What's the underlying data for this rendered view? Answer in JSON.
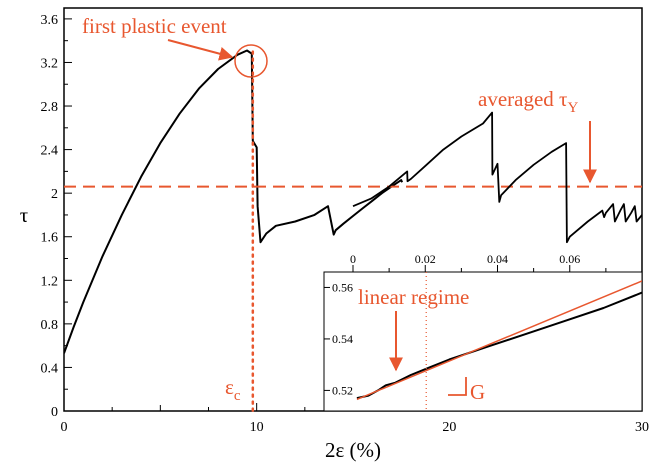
{
  "chart_data": [
    {
      "type": "line",
      "xlabel": "2ε (%)",
      "ylabel": "τ",
      "xlim": [
        0,
        30
      ],
      "ylim": [
        0,
        3.7
      ],
      "x_ticks": [
        0,
        10,
        20,
        30
      ],
      "y_ticks": [
        0,
        0.4,
        0.8,
        1.2,
        1.6,
        2,
        2.4,
        2.8,
        3.2,
        3.6
      ],
      "y_tick_labels": [
        "0",
        "0.4",
        "0.8",
        "1.2",
        "1.6",
        "2",
        "2.4",
        "2.8",
        "3.2",
        "3.6"
      ],
      "series": [
        {
          "color": "#000000",
          "x": [
            0,
            0.5,
            1,
            2,
            3,
            4,
            5,
            6,
            7,
            8,
            9,
            9.5,
            9.75,
            9.8,
            10,
            10.05,
            10.2,
            10.5,
            11,
            12,
            13,
            13.7,
            14.0,
            14.1,
            14.5,
            15,
            15.5,
            16,
            16.5,
            17,
            17.5,
            17.55
          ],
          "y": [
            0.53,
            0.77,
            1.0,
            1.42,
            1.8,
            2.15,
            2.46,
            2.73,
            2.96,
            3.14,
            3.27,
            3.31,
            3.28,
            2.48,
            2.42,
            1.88,
            1.55,
            1.63,
            1.7,
            1.74,
            1.8,
            1.88,
            1.62,
            1.66,
            1.72,
            1.79,
            1.86,
            1.93,
            2.0,
            2.06,
            2.12,
            2.1
          ]
        }
      ],
      "reference_lines": [
        {
          "orientation": "horizontal",
          "value": 2.06,
          "style": "dashed",
          "color": "#e8572f"
        },
        {
          "orientation": "vertical",
          "value": 9.8,
          "style": "dotted",
          "color": "#e8572f"
        }
      ],
      "annotations": [
        {
          "text": "first plastic event",
          "color": "#e8572f"
        },
        {
          "text": "averaged τ",
          "subscript": "Y",
          "color": "#e8572f"
        },
        {
          "text": "ε",
          "subscript": "c",
          "color": "#e8572f"
        }
      ]
    },
    {
      "type": "line",
      "xlim": [
        0,
        0.08
      ],
      "x_ticks": [
        0,
        0.02,
        0.04,
        0.06
      ],
      "x_tick_labels": [
        "0",
        "0.02",
        "0.04",
        "0.06"
      ],
      "series": [
        {
          "color": "#000000",
          "x": [
            0,
            0.005,
            0.01,
            0.015,
            0.0151,
            0.016,
            0.02,
            0.025,
            0.03,
            0.036,
            0.0385,
            0.0386,
            0.04,
            0.0405,
            0.041,
            0.045,
            0.05,
            0.055,
            0.059,
            0.0592,
            0.06,
            0.065,
            0.069,
            0.0695,
            0.07,
            0.072,
            0.0725,
            0.074,
            0.075,
            0.0755,
            0.077,
            0.078,
            0.0785,
            0.08
          ],
          "y": [
            1.88,
            1.95,
            2.06,
            2.2,
            2.11,
            2.13,
            2.25,
            2.4,
            2.52,
            2.64,
            2.74,
            2.17,
            2.27,
            1.92,
            1.98,
            2.12,
            2.26,
            2.38,
            2.46,
            1.55,
            1.6,
            1.74,
            1.84,
            1.78,
            1.82,
            1.9,
            1.74,
            1.84,
            1.9,
            1.74,
            1.82,
            1.88,
            1.74,
            1.8
          ]
        }
      ]
    },
    {
      "type": "line",
      "xlim": [
        15,
        30
      ],
      "ylim": [
        0.512,
        0.566
      ],
      "y_ticks": [
        0.52,
        0.54,
        0.56
      ],
      "y_tick_labels": [
        "0.52",
        "0.54",
        "0.56"
      ],
      "series": [
        {
          "color": "#000000",
          "x": [
            15.2,
            15.8,
            16.3,
            16.7,
            17.2,
            18.0,
            19.0,
            20.0,
            22.0,
            24.0,
            26.0,
            28.0,
            30.0
          ],
          "y": [
            0.517,
            0.518,
            0.52,
            0.522,
            0.523,
            0.526,
            0.529,
            0.532,
            0.537,
            0.542,
            0.547,
            0.552,
            0.558
          ]
        },
        {
          "color": "#e8572f",
          "x": [
            15.2,
            30.0
          ],
          "y": [
            0.5165,
            0.5625
          ]
        }
      ],
      "reference_lines": [
        {
          "orientation": "vertical",
          "value": 18.8,
          "style": "dotted",
          "color": "#e8572f"
        }
      ],
      "annotations": [
        {
          "text": "linear regime",
          "color": "#e8572f"
        },
        {
          "text": "G",
          "color": "#e8572f"
        }
      ]
    }
  ]
}
